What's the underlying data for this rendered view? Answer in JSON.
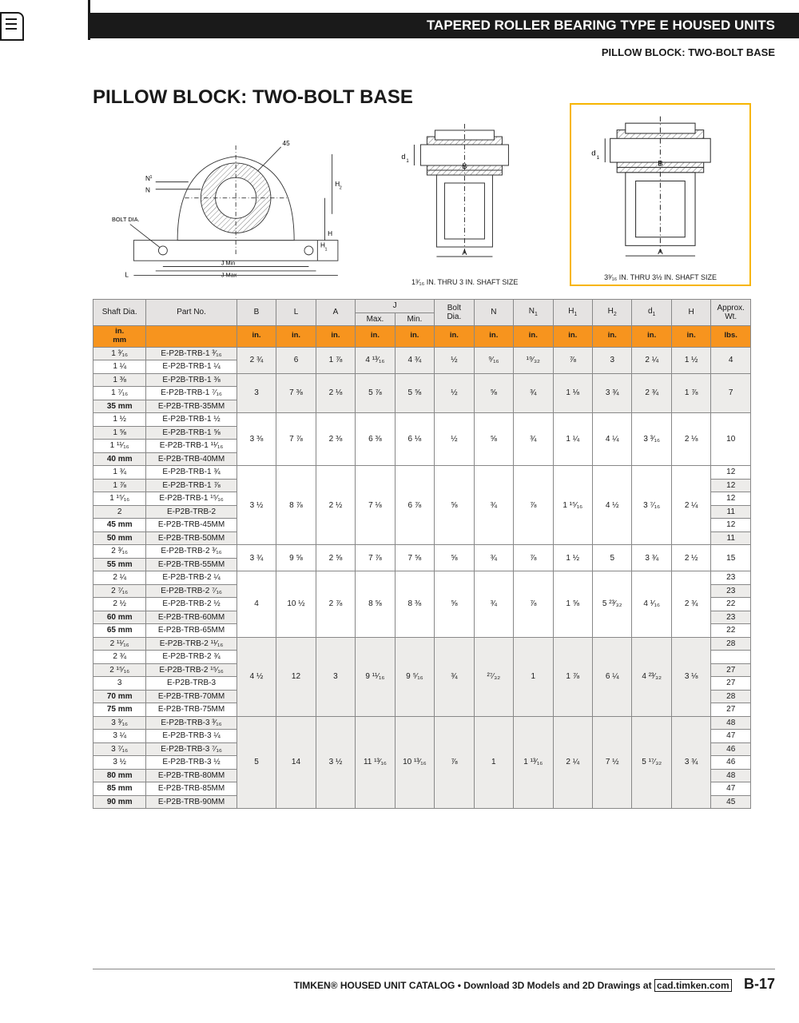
{
  "header": {
    "bar_title": "TAPERED ROLLER BEARING TYPE E HOUSED UNITS",
    "subhead": "PILLOW BLOCK: TWO-BOLT BASE",
    "section_title": "PILLOW BLOCK: TWO-BOLT BASE"
  },
  "diagrams": {
    "left": {
      "labels": [
        "45",
        "N₁",
        "N",
        "BOLT DIA.",
        "H₂",
        "H",
        "H₁",
        "J Min",
        "J Max",
        "L"
      ]
    },
    "mid": {
      "labels": [
        "d₁",
        "B",
        "A"
      ],
      "caption": "1³⁄₁₆ IN. THRU 3 IN. SHAFT SIZE"
    },
    "right": {
      "labels": [
        "d₁",
        "B",
        "A"
      ],
      "caption": "3³⁄₁₆ IN. THRU 3½ IN. SHAFT SIZE"
    },
    "highlight_color": "#f7b500"
  },
  "table": {
    "columns": [
      "Shaft Dia.",
      "Part No.",
      "B",
      "L",
      "A",
      {
        "label": "J",
        "sub": [
          "Max.",
          "Min."
        ]
      },
      "Bolt Dia.",
      "N",
      "N₁",
      "H₁",
      "H₂",
      "d₁",
      "H",
      "Approx. Wt."
    ],
    "unit_row": [
      "in.\nmm",
      "",
      "in.",
      "in.",
      "in.",
      "in.",
      "in.",
      "in.",
      "in.",
      "in.",
      "in.",
      "in.",
      "in.",
      "in.",
      "lbs."
    ],
    "groups": [
      {
        "shared": [
          "2 ¾",
          "6",
          "1 ⅞",
          "4 ¹³⁄₁₆",
          "4 ¾",
          "½",
          "⁹⁄₁₆",
          "¹⁹⁄₃₂",
          "⅞",
          "3",
          "2 ¼",
          "1 ½",
          "4"
        ],
        "rows": [
          {
            "shaft": "1 ³⁄₁₆",
            "part": "E-P2B-TRB-1 ³⁄₁₆"
          },
          {
            "shaft": "1 ¼",
            "part": "E-P2B-TRB-1 ¼"
          }
        ]
      },
      {
        "shared": [
          "3",
          "7 ⅜",
          "2 ⅛",
          "5 ⅞",
          "5 ⅝",
          "½",
          "⅝",
          "¾",
          "1 ⅛",
          "3 ¾",
          "2 ¾",
          "1 ⅞",
          "7"
        ],
        "rows": [
          {
            "shaft": "1 ⅜",
            "part": "E-P2B-TRB-1 ⅜"
          },
          {
            "shaft": "1 ⁷⁄₁₆",
            "part": "E-P2B-TRB-1 ⁷⁄₁₆"
          },
          {
            "shaft": "35 mm",
            "part": "E-P2B-TRB-35MM",
            "bold": true
          }
        ]
      },
      {
        "shared": [
          "3 ⅜",
          "7 ⅞",
          "2 ⅜",
          "6 ⅜",
          "6 ⅛",
          "½",
          "⅝",
          "¾",
          "1 ¼",
          "4 ¼",
          "3 ³⁄₁₆",
          "2 ⅛",
          "10"
        ],
        "rows": [
          {
            "shaft": "1 ½",
            "part": "E-P2B-TRB-1 ½"
          },
          {
            "shaft": "1 ⅝",
            "part": "E-P2B-TRB-1 ⅝"
          },
          {
            "shaft": "1 ¹¹⁄₁₆",
            "part": "E-P2B-TRB-1 ¹¹⁄₁₆"
          },
          {
            "shaft": "40 mm",
            "part": "E-P2B-TRB-40MM",
            "bold": true
          }
        ]
      },
      {
        "shared": [
          "3 ½",
          "8 ⅞",
          "2 ½",
          "7 ⅛",
          "6 ⅞",
          "⅝",
          "¾",
          "⅞",
          "1 ¹⁵⁄₁₆",
          "4 ½",
          "3 ⁷⁄₁₆",
          "2 ¼",
          ""
        ],
        "wt": [
          "12",
          "12",
          "12",
          "11",
          "12",
          "11"
        ],
        "rows": [
          {
            "shaft": "1 ¾",
            "part": "E-P2B-TRB-1 ¾"
          },
          {
            "shaft": "1 ⅞",
            "part": "E-P2B-TRB-1 ⅞"
          },
          {
            "shaft": "1 ¹⁵⁄₁₆",
            "part": "E-P2B-TRB-1 ¹⁵⁄₁₆"
          },
          {
            "shaft": "2",
            "part": "E-P2B-TRB-2"
          },
          {
            "shaft": "45 mm",
            "part": "E-P2B-TRB-45MM",
            "bold": true
          },
          {
            "shaft": "50 mm",
            "part": "E-P2B-TRB-50MM",
            "bold": true
          }
        ]
      },
      {
        "shared": [
          "3 ¾",
          "9 ⅝",
          "2 ⅝",
          "7 ⅞",
          "7 ⅝",
          "⅝",
          "¾",
          "⅞",
          "1 ½",
          "5",
          "3 ¾",
          "2 ½",
          "15"
        ],
        "rows": [
          {
            "shaft": "2 ³⁄₁₆",
            "part": "E-P2B-TRB-2 ³⁄₁₆"
          },
          {
            "shaft": "55 mm",
            "part": "E-P2B-TRB-55MM",
            "bold": true
          }
        ]
      },
      {
        "shared": [
          "4",
          "10 ½",
          "2 ⅞",
          "8 ⅝",
          "8 ⅜",
          "⅝",
          "¾",
          "⅞",
          "1 ⅝",
          "5 ²³⁄₃₂",
          "4 ¹⁄₁₆",
          "2 ¾",
          ""
        ],
        "wt": [
          "23",
          "23",
          "22",
          "23",
          "22"
        ],
        "rows": [
          {
            "shaft": "2 ¼",
            "part": "E-P2B-TRB-2 ¼"
          },
          {
            "shaft": "2 ⁷⁄₁₆",
            "part": "E-P2B-TRB-2 ⁷⁄₁₆"
          },
          {
            "shaft": "2 ½",
            "part": "E-P2B-TRB-2 ½"
          },
          {
            "shaft": "60 mm",
            "part": "E-P2B-TRB-60MM",
            "bold": true
          },
          {
            "shaft": "65 mm",
            "part": "E-P2B-TRB-65MM",
            "bold": true
          }
        ]
      },
      {
        "shared": [
          "4 ½",
          "12",
          "3",
          "9 ¹¹⁄₁₆",
          "9 ⁵⁄₁₆",
          "¾",
          "²⁷⁄₃₂",
          "1",
          "1 ⅞",
          "6 ¼",
          "4 ²³⁄₃₂",
          "3 ⅛",
          ""
        ],
        "wt_pairs": [
          [
            "28"
          ],
          [
            "27",
            "27"
          ],
          [
            "28"
          ],
          [
            "27"
          ]
        ],
        "wt": [
          "28",
          "",
          "27",
          "27",
          "28",
          "27"
        ],
        "rows": [
          {
            "shaft": "2 ¹¹⁄₁₆",
            "part": "E-P2B-TRB-2 ¹¹⁄₁₆"
          },
          {
            "shaft": "2 ¾",
            "part": "E-P2B-TRB-2 ¾"
          },
          {
            "shaft": "2 ¹⁵⁄₁₆",
            "part": "E-P2B-TRB-2 ¹⁵⁄₁₆"
          },
          {
            "shaft": "3",
            "part": "E-P2B-TRB-3"
          },
          {
            "shaft": "70 mm",
            "part": "E-P2B-TRB-70MM",
            "bold": true
          },
          {
            "shaft": "75 mm",
            "part": "E-P2B-TRB-75MM",
            "bold": true
          }
        ]
      },
      {
        "shared": [
          "5",
          "14",
          "3 ½",
          "11 ¹³⁄₁₆",
          "10 ¹³⁄₁₆",
          "⅞",
          "1",
          "1 ¹³⁄₁₆",
          "2 ¼",
          "7 ½",
          "5 ¹⁷⁄₃₂",
          "3 ¾",
          ""
        ],
        "wt": [
          "48",
          "47",
          "46",
          "46",
          "48",
          "47",
          "45"
        ],
        "rows": [
          {
            "shaft": "3 ³⁄₁₆",
            "part": "E-P2B-TRB-3 ³⁄₁₆"
          },
          {
            "shaft": "3 ¼",
            "part": "E-P2B-TRB-3 ¼"
          },
          {
            "shaft": "3 ⁷⁄₁₆",
            "part": "E-P2B-TRB-3 ⁷⁄₁₆"
          },
          {
            "shaft": "3 ½",
            "part": "E-P2B-TRB-3 ½"
          },
          {
            "shaft": "80 mm",
            "part": "E-P2B-TRB-80MM",
            "bold": true
          },
          {
            "shaft": "85 mm",
            "part": "E-P2B-TRB-85MM",
            "bold": true
          },
          {
            "shaft": "90 mm",
            "part": "E-P2B-TRB-90MM",
            "bold": true
          }
        ]
      }
    ]
  },
  "footer": {
    "text_prefix": "TIMKEN® HOUSED UNIT CATALOG • Download 3D Models and 2D Drawings at ",
    "link_text": "cad.timken.com",
    "page": "B-17"
  },
  "colors": {
    "black": "#1a1a1a",
    "orange": "#f7941e",
    "header_grey": "#e5e3e2",
    "zebra_grey": "#edecea",
    "highlight": "#f7b500",
    "hatch_fill": "#c8c8c8"
  }
}
